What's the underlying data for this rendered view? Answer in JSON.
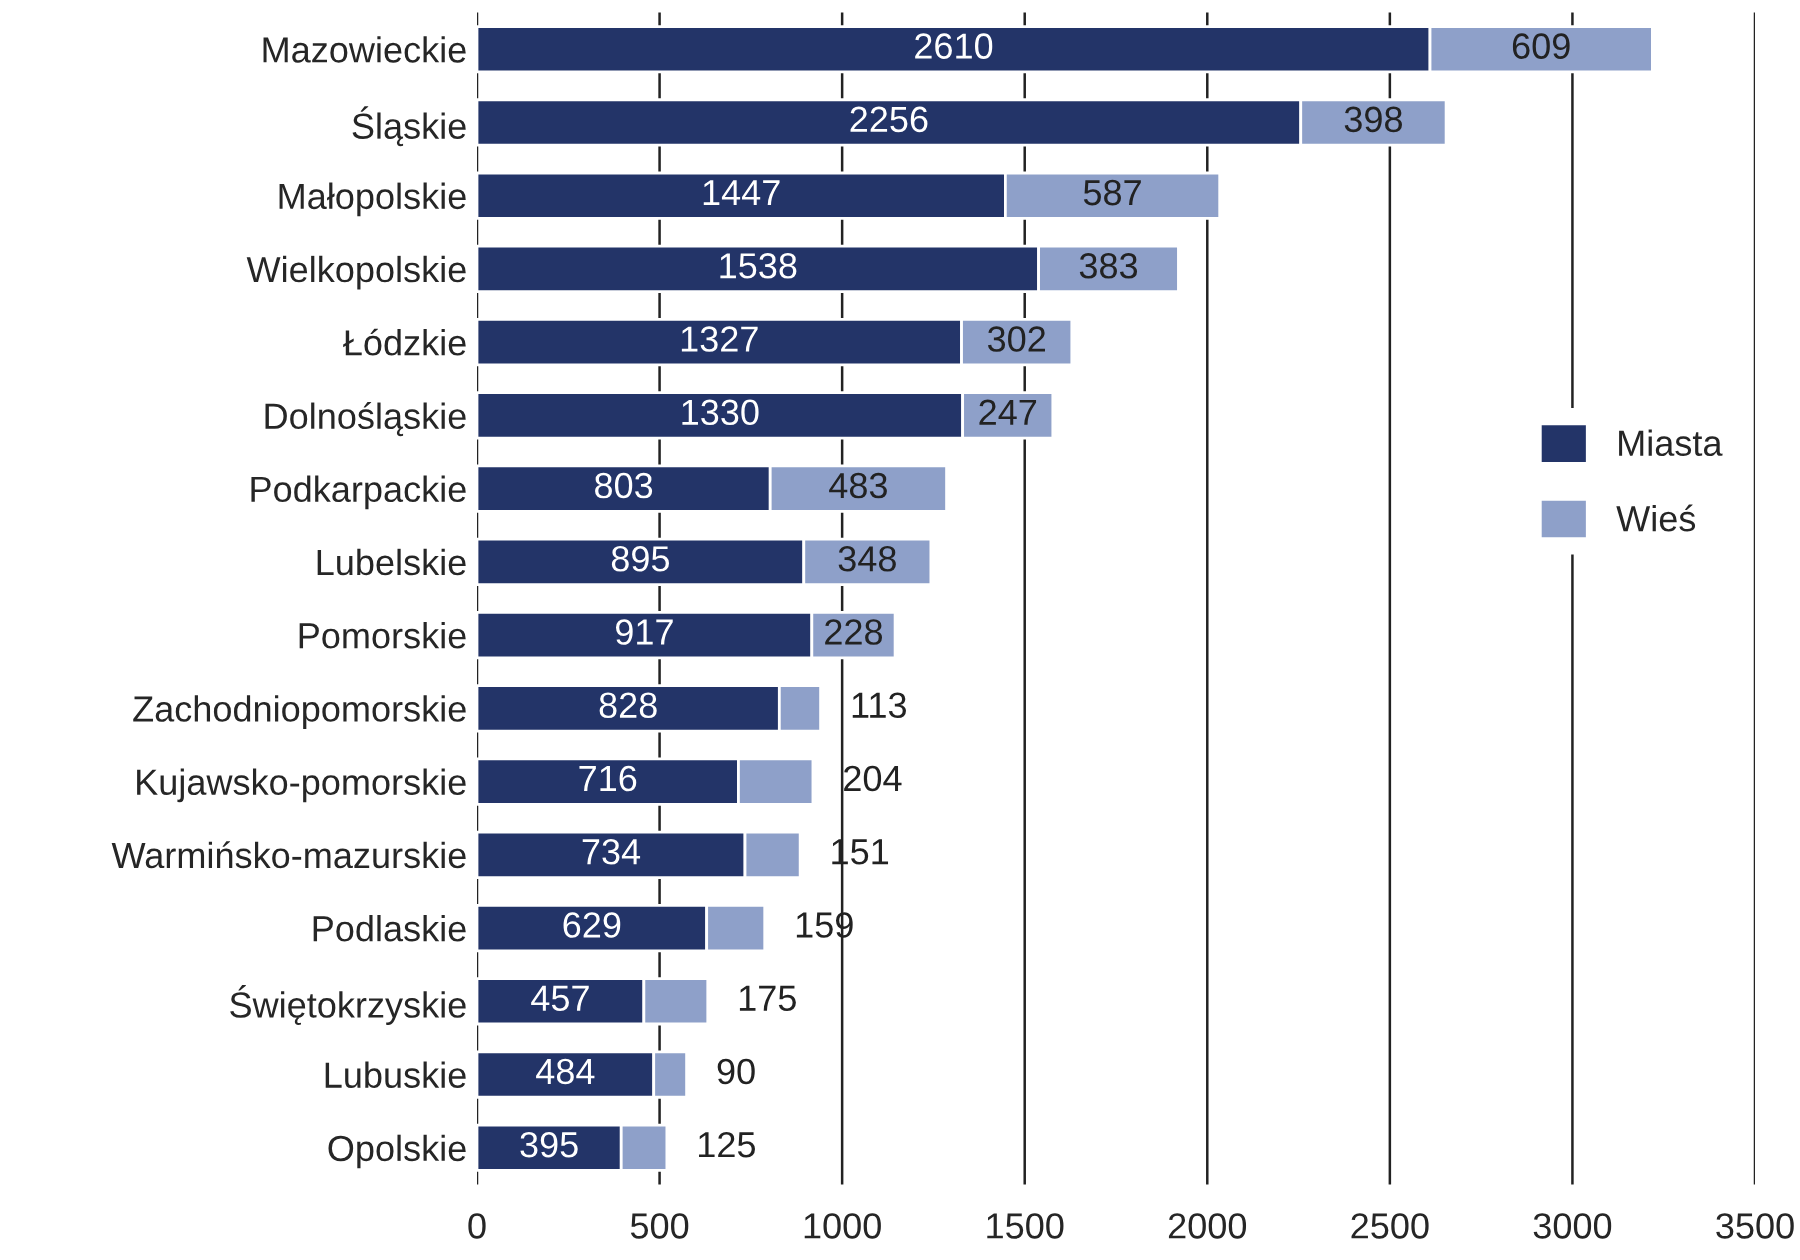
{
  "chart_data": {
    "type": "bar",
    "orientation": "horizontal",
    "stacked": true,
    "categories": [
      "Mazowieckie",
      "Śląskie",
      "Małopolskie",
      "Wielkopolskie",
      "Łódzkie",
      "Dolnośląskie",
      "Podkarpackie",
      "Lubelskie",
      "Pomorskie",
      "Zachodniopomorskie",
      "Kujawsko-pomorskie",
      "Warmińsko-mazurskie",
      "Podlaskie",
      "Świętokrzyskie",
      "Lubuskie",
      "Opolskie"
    ],
    "series": [
      {
        "name": "Miasta",
        "color": "#233468",
        "values": [
          2610,
          2256,
          1447,
          1538,
          1327,
          1330,
          803,
          895,
          917,
          828,
          716,
          734,
          629,
          457,
          484,
          395
        ]
      },
      {
        "name": "Wieś",
        "color": "#8ea0c9",
        "values": [
          609,
          398,
          587,
          383,
          302,
          247,
          483,
          348,
          228,
          113,
          204,
          151,
          159,
          175,
          90,
          125
        ]
      }
    ],
    "xlim": [
      0,
      3500
    ],
    "xticks": [
      0,
      500,
      1000,
      1500,
      2000,
      2500,
      3000,
      3500
    ],
    "grid": "x",
    "legend": "right",
    "data_labels": true
  }
}
